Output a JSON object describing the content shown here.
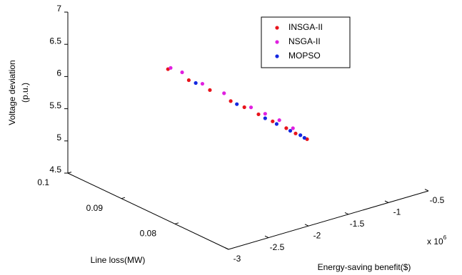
{
  "chart_data": {
    "type": "scatter3d",
    "xlabel": "Energy-saving benefit($)",
    "ylabel": "Line loss(MW)",
    "zlabel": [
      "Voltage deviation",
      "(p.u.)"
    ],
    "x_scale_label": {
      "base": "x 10",
      "exponent": "6"
    },
    "xlim": [
      -3,
      -0.5
    ],
    "xticks": [
      -3,
      -2.5,
      -2,
      -1.5,
      -1,
      -0.5
    ],
    "ylim": [
      0.07,
      0.1
    ],
    "yticks": [
      0.08,
      0.09,
      0.1
    ],
    "zlim": [
      4.5,
      7
    ],
    "zticks": [
      4.5,
      5,
      5.5,
      6,
      6.5,
      7
    ],
    "grid": false,
    "legend": "upper right",
    "series": [
      {
        "name": "INSGA-II",
        "color": "#e8141c",
        "x": [
          -2.21,
          -2.05,
          -1.88,
          -1.72,
          -1.61,
          -1.5,
          -1.39,
          -1.28,
          -1.21,
          -1.12
        ],
        "y": [
          0.0931,
          0.0916,
          0.0902,
          0.0887,
          0.0878,
          0.0868,
          0.0858,
          0.0849,
          0.0842,
          0.0834
        ],
        "z": [
          6.1,
          5.93,
          5.77,
          5.6,
          5.5,
          5.39,
          5.28,
          5.17,
          5.09,
          5.0
        ]
      },
      {
        "name": "NSGA-II",
        "color": "#e020e0",
        "x": [
          -2.19,
          -2.1,
          -1.94,
          -1.77,
          -1.56,
          -1.45,
          -1.34,
          -1.23
        ],
        "y": [
          0.0929,
          0.0921,
          0.0907,
          0.0892,
          0.0873,
          0.0863,
          0.0853,
          0.0844
        ],
        "z": [
          6.12,
          6.05,
          5.87,
          5.72,
          5.5,
          5.4,
          5.3,
          5.17
        ]
      },
      {
        "name": "MOPSO",
        "color": "#1428e0",
        "x": [
          -1.99,
          -1.67,
          -1.45,
          -1.36,
          -1.25,
          -1.17,
          -1.14
        ],
        "y": [
          0.0912,
          0.0883,
          0.0863,
          0.0855,
          0.0846,
          0.0839,
          0.0836
        ],
        "z": [
          5.88,
          5.55,
          5.33,
          5.24,
          5.13,
          5.06,
          5.02
        ]
      }
    ]
  }
}
